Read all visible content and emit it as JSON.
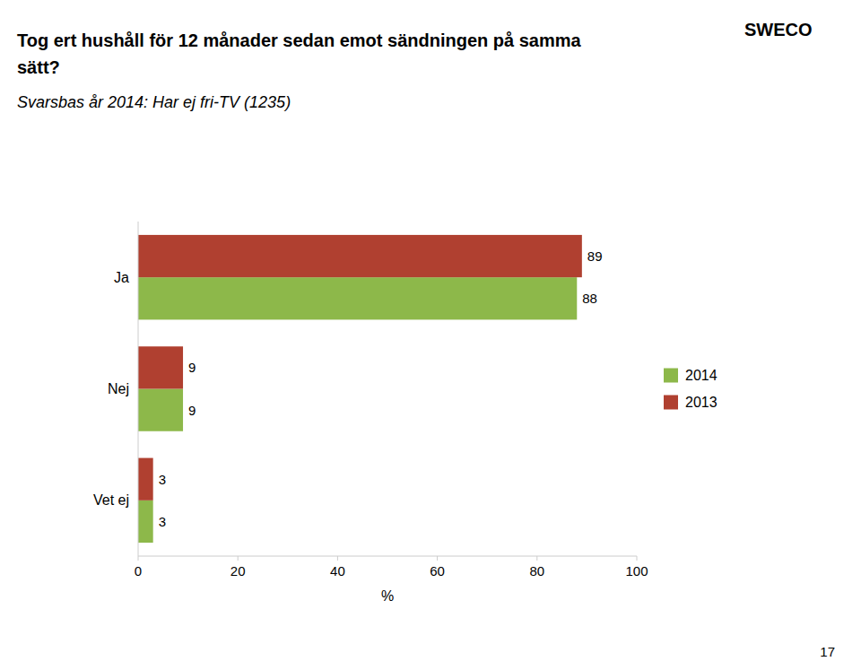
{
  "chart_data": {
    "type": "bar",
    "orientation": "horizontal",
    "title": "Tog ert hushåll för 12 månader sedan emot sändningen på samma sätt?",
    "subtitle": "Svarsbas år 2014: Har ej fri-TV (1235)",
    "categories": [
      "Ja",
      "Nej",
      "Vet ej"
    ],
    "series": [
      {
        "name": "2014",
        "color": "#8DB84A",
        "values": [
          88,
          9,
          3
        ]
      },
      {
        "name": "2013",
        "color": "#B04030",
        "values": [
          89,
          9,
          3
        ]
      }
    ],
    "x_label": "%",
    "xlim": [
      0,
      100
    ],
    "xticks": [
      0,
      20,
      40,
      60,
      80,
      100
    ],
    "data_labels": true,
    "grid": false,
    "legend": "right",
    "annotations": [
      "SWECO",
      "17"
    ]
  }
}
